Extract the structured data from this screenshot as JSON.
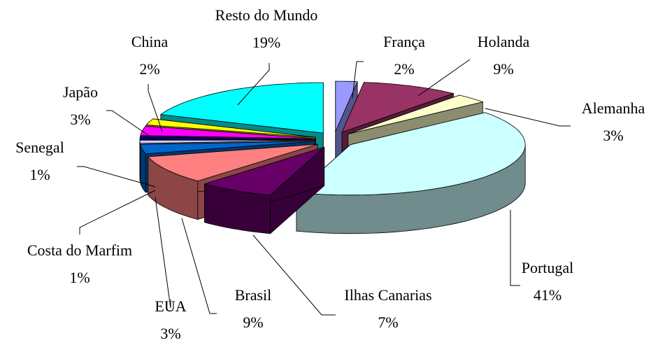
{
  "chart_data": {
    "type": "pie3d",
    "categories": [
      "França",
      "Holanda",
      "Alemanha",
      "Portugal",
      "Ilhas Canarias",
      "Brasil",
      "EUA",
      "Costa do Marfim",
      "Senegal",
      "Japão",
      "China",
      "Resto do Mundo"
    ],
    "values": [
      2,
      9,
      3,
      41,
      7,
      9,
      3,
      1,
      1,
      3,
      2,
      19
    ],
    "value_labels": [
      "2%",
      "9%",
      "3%",
      "41%",
      "7%",
      "9%",
      "3%",
      "1%",
      "1%",
      "3%",
      "2%",
      "19%"
    ],
    "colors": [
      "#9999ff",
      "#993366",
      "#ffffcc",
      "#ccffff",
      "#660066",
      "#ff8080",
      "#0066cc",
      "#ccccff",
      "#000080",
      "#ff00ff",
      "#ffff00",
      "#00ffff"
    ]
  }
}
